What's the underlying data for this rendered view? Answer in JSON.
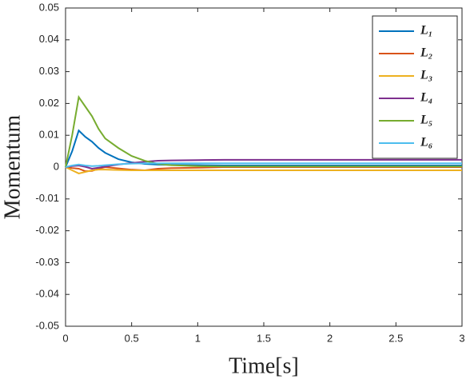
{
  "chart_data": {
    "type": "line",
    "xlabel": "Time[s]",
    "ylabel": "Momentum",
    "x": [
      0,
      0.05,
      0.1,
      0.15,
      0.2,
      0.25,
      0.3,
      0.4,
      0.5,
      0.6,
      0.7,
      0.8,
      1,
      1.2,
      1.5,
      2,
      2.5,
      3
    ],
    "series": [
      {
        "name": "L₁",
        "color": "#0072BD",
        "values": [
          0,
          0.005,
          0.0115,
          0.0095,
          0.008,
          0.006,
          0.0045,
          0.0025,
          0.0015,
          0.001,
          0.0008,
          0.0007,
          0.0006,
          0.0005,
          0.0005,
          0.0005,
          0.0005,
          0.0005
        ]
      },
      {
        "name": "L₂",
        "color": "#D95319",
        "values": [
          0,
          -0.0003,
          -0.0005,
          -0.0013,
          -0.0012,
          -0.0005,
          0,
          -0.0004,
          -0.0008,
          -0.001,
          -0.0005,
          -0.0003,
          -0.0002,
          0,
          0,
          0,
          0,
          0
        ]
      },
      {
        "name": "L₃",
        "color": "#EDB120",
        "values": [
          0,
          -0.001,
          -0.002,
          -0.0015,
          -0.001,
          -0.0008,
          -0.0008,
          -0.0009,
          -0.001,
          -0.001,
          -0.001,
          -0.001,
          -0.001,
          -0.001,
          -0.001,
          -0.001,
          -0.001,
          -0.001
        ]
      },
      {
        "name": "L₄",
        "color": "#7E2F8E",
        "values": [
          0,
          0.0003,
          0.0005,
          0.0001,
          -0.0005,
          -0.0002,
          0.0002,
          0.0008,
          0.0013,
          0.0017,
          0.002,
          0.0021,
          0.0022,
          0.0023,
          0.0023,
          0.0023,
          0.0023,
          0.0023
        ]
      },
      {
        "name": "L₅",
        "color": "#77AC30",
        "values": [
          0,
          0.01,
          0.022,
          0.019,
          0.016,
          0.012,
          0.009,
          0.006,
          0.0035,
          0.002,
          0.001,
          0.0006,
          0.0003,
          0.0002,
          0.0002,
          0.0002,
          0.0002,
          0.0002
        ]
      },
      {
        "name": "L₆",
        "color": "#4DBEEE",
        "values": [
          0,
          0.0005,
          0.0008,
          0.0005,
          0.0003,
          0.0004,
          0.0006,
          0.0009,
          0.0011,
          0.0012,
          0.0012,
          0.0012,
          0.0012,
          0.0012,
          0.0012,
          0.0012,
          0.0012,
          0.0012
        ]
      }
    ],
    "xlim": [
      0,
      3
    ],
    "xticks": [
      0,
      0.5,
      1,
      1.5,
      2,
      2.5,
      3
    ],
    "ylim": [
      -0.05,
      0.05
    ],
    "yticks": [
      -0.05,
      -0.04,
      -0.03,
      -0.02,
      -0.01,
      0,
      0.01,
      0.02,
      0.03,
      0.04,
      0.05
    ],
    "legend": "northeast"
  }
}
